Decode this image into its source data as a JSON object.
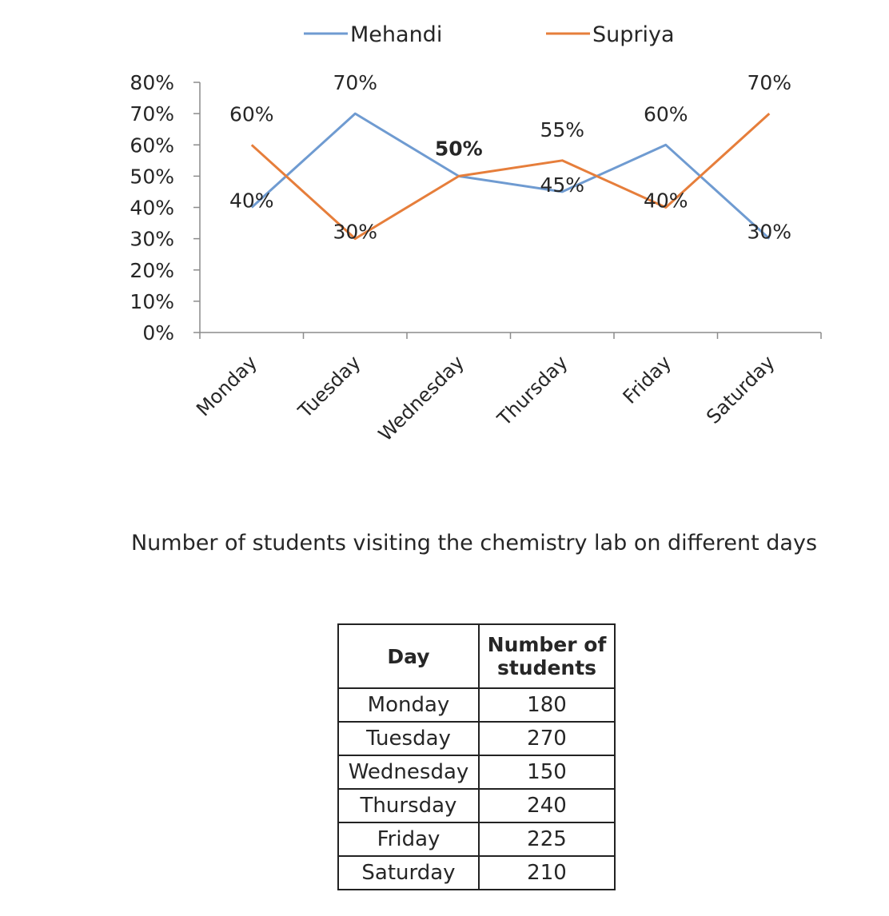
{
  "chart_data": [
    {
      "type": "line",
      "categories": [
        "Monday",
        "Tuesday",
        "Wednesday",
        "Thursday",
        "Friday",
        "Saturday"
      ],
      "series": [
        {
          "name": "Mehandi",
          "values": [
            40,
            70,
            50,
            45,
            60,
            30
          ],
          "color": "#6F9BD1"
        },
        {
          "name": "Supriya",
          "values": [
            60,
            30,
            50,
            55,
            40,
            70
          ],
          "color": "#E67E3B"
        }
      ],
      "y_unit": "%",
      "ylim": [
        0,
        80
      ],
      "yticks": [
        "0%",
        "10%",
        "20%",
        "30%",
        "40%",
        "50%",
        "60%",
        "70%",
        "80%"
      ],
      "grid": false,
      "legend": "top",
      "data_labels": true
    },
    {
      "type": "table",
      "title": "Number of students visiting the chemistry lab on different days",
      "columns": [
        "Day",
        "Number of students"
      ],
      "rows": [
        [
          "Monday",
          "180"
        ],
        [
          "Tuesday",
          "270"
        ],
        [
          "Wednesday",
          "150"
        ],
        [
          "Thursday",
          "240"
        ],
        [
          "Friday",
          "225"
        ],
        [
          "Saturday",
          "210"
        ]
      ]
    }
  ]
}
